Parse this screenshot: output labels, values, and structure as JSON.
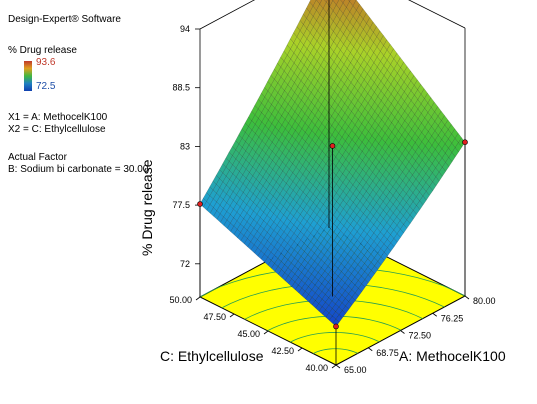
{
  "software_title": "Design-Expert® Software",
  "response": {
    "name": "% Drug release",
    "high": "93.6",
    "low": "72.5",
    "colors": {
      "high": "#c0392b",
      "low": "#1f4fa8"
    }
  },
  "factors": {
    "x1": "X1 = A: MethocelK100",
    "x2": "X2 = C: Ethylcellulose",
    "actual_heading": "Actual Factor",
    "actual_value": "B: Sodium bi carbonate = 30.00"
  },
  "chart_data": {
    "type": "surface",
    "zlabel": "% Drug release",
    "xlabel": "A: MethocelK100",
    "ylabel": "C: Ethylcellulose",
    "x_ticks": [
      "65.00",
      "68.75",
      "72.50",
      "76.25",
      "80.00"
    ],
    "y_ticks": [
      "40.00",
      "42.50",
      "45.00",
      "47.50",
      "50.00"
    ],
    "z_ticks": [
      "72",
      "77.5",
      "83",
      "88.5",
      "94"
    ],
    "xlim": [
      65,
      80
    ],
    "ylim": [
      40,
      50
    ],
    "zlim": [
      72,
      94
    ],
    "corner_values": {
      "A65_C40": 72.5,
      "A80_C40": 83.3,
      "A65_C50": 77.6,
      "A80_C50": 93.6
    },
    "design_points": [
      {
        "A": 65,
        "C": 50,
        "y": 77.6
      },
      {
        "A": 80,
        "C": 50,
        "y": 93.6
      },
      {
        "A": 80,
        "C": 40,
        "y": 83.3
      },
      {
        "A": 72.5,
        "C": 45,
        "y": 83.0
      },
      {
        "A": 65,
        "C": 40,
        "y": 72.5
      }
    ]
  }
}
